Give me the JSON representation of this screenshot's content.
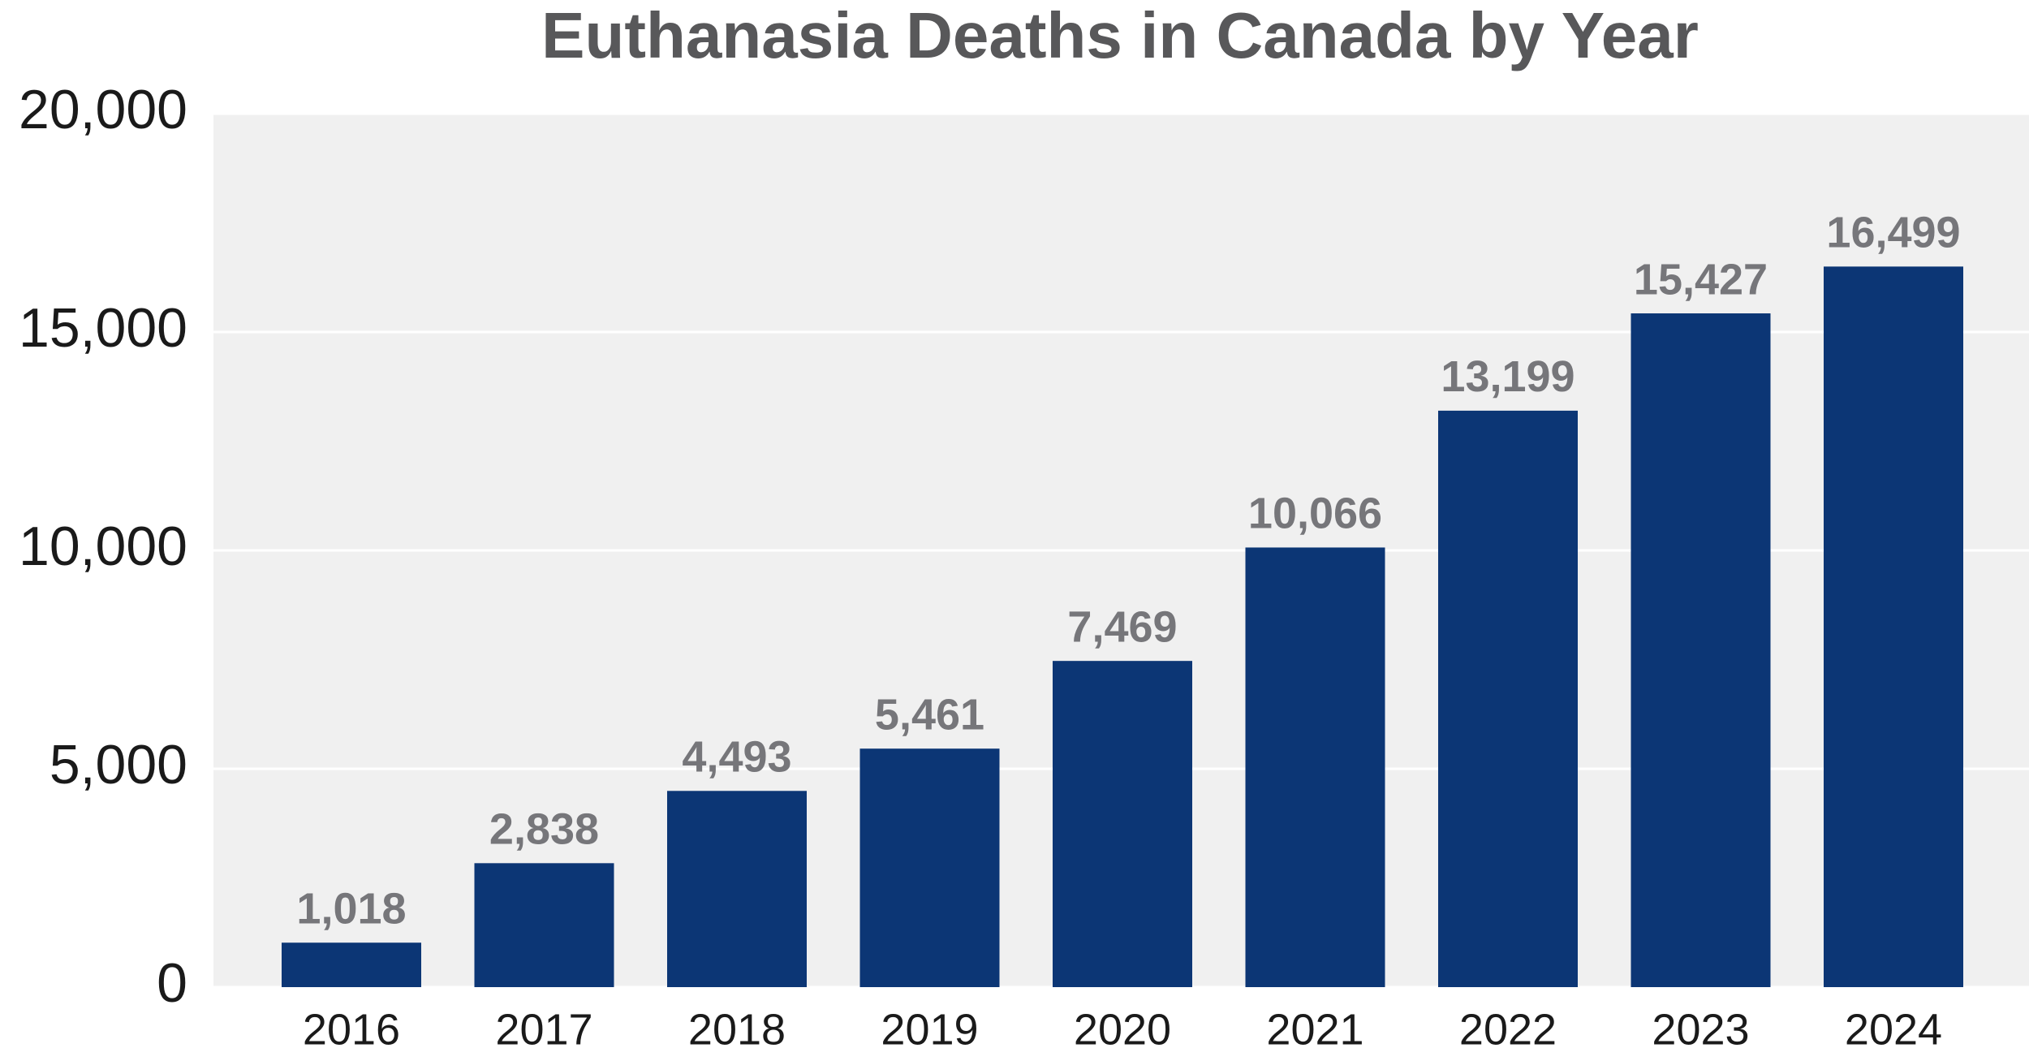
{
  "chart_data": {
    "type": "bar",
    "title": "Euthanasia Deaths in Canada by Year",
    "categories": [
      "2016",
      "2017",
      "2018",
      "2019",
      "2020",
      "2021",
      "2022",
      "2023",
      "2024"
    ],
    "values": [
      1018,
      2838,
      4493,
      5461,
      7469,
      10066,
      13199,
      15427,
      16499
    ],
    "value_labels": [
      "1,018",
      "2,838",
      "4,493",
      "5,461",
      "7,469",
      "10,066",
      "13,199",
      "15,427",
      "16,499"
    ],
    "color": "#0c3675",
    "ylim": [
      0,
      20000
    ],
    "yticks": [
      0,
      {
        "value": 5000,
        "label": "5,000"
      },
      {
        "value": 10000,
        "label": "10,000"
      },
      {
        "value": 15000,
        "label": "15,000"
      },
      {
        "value": 20000,
        "label": "20,000"
      }
    ],
    "grid": true
  }
}
